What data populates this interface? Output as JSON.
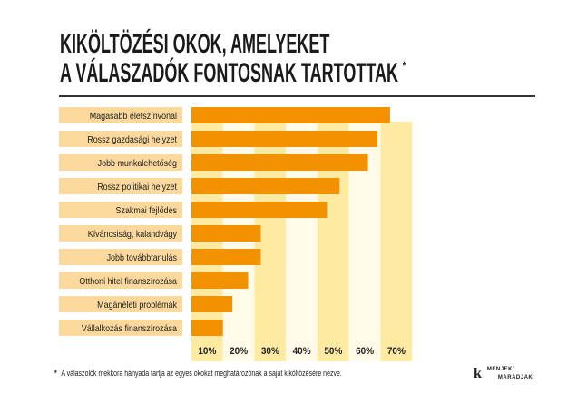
{
  "title_line1": "KIKÖLTÖZÉSI OKOK, AMELYEKET",
  "title_line2": "A VÁLASZADÓK FONTOSNAK TARTOTTAK",
  "title_marker": "*",
  "footnote_marker": "*",
  "footnote": "A válaszolók mekkora hányada tartja az egyes okokat meghatározónak a saját kiköltözésére nézve.",
  "logo": {
    "mark": "k",
    "line1": "MENJEK/",
    "line2": "MARADJAK"
  },
  "colors": {
    "bar": "#f39200",
    "label_bg": "#fbd89c",
    "band_dark": "#feeaa0",
    "band_light": "#fffbe8"
  },
  "chart_data": {
    "type": "bar",
    "orientation": "horizontal",
    "title": "KIKÖLTÖZÉSI OKOK, AMELYEKET A VÁLASZADÓK FONTOSNAK TARTOTTAK",
    "categories": [
      "Magasabb életszínvonal",
      "Rossz gazdasági helyzet",
      "Jobb munkalehetőség",
      "Rossz politikai helyzet",
      "Szakmai fejlődés",
      "Kíváncsiság, kalandvágy",
      "Jobb továbbtanulás",
      "Otthoni hitel finanszírozása",
      "Magánéleti problémák",
      "Vállalkozás finanszírozása"
    ],
    "values": [
      63,
      59,
      56,
      47,
      43,
      22,
      22,
      18,
      13,
      10
    ],
    "unit": "%",
    "xlim": [
      0,
      70
    ],
    "tick_labels": [
      "10%",
      "20%",
      "30%",
      "40%",
      "50%",
      "60%",
      "70%"
    ],
    "grid": "alternating bands"
  }
}
